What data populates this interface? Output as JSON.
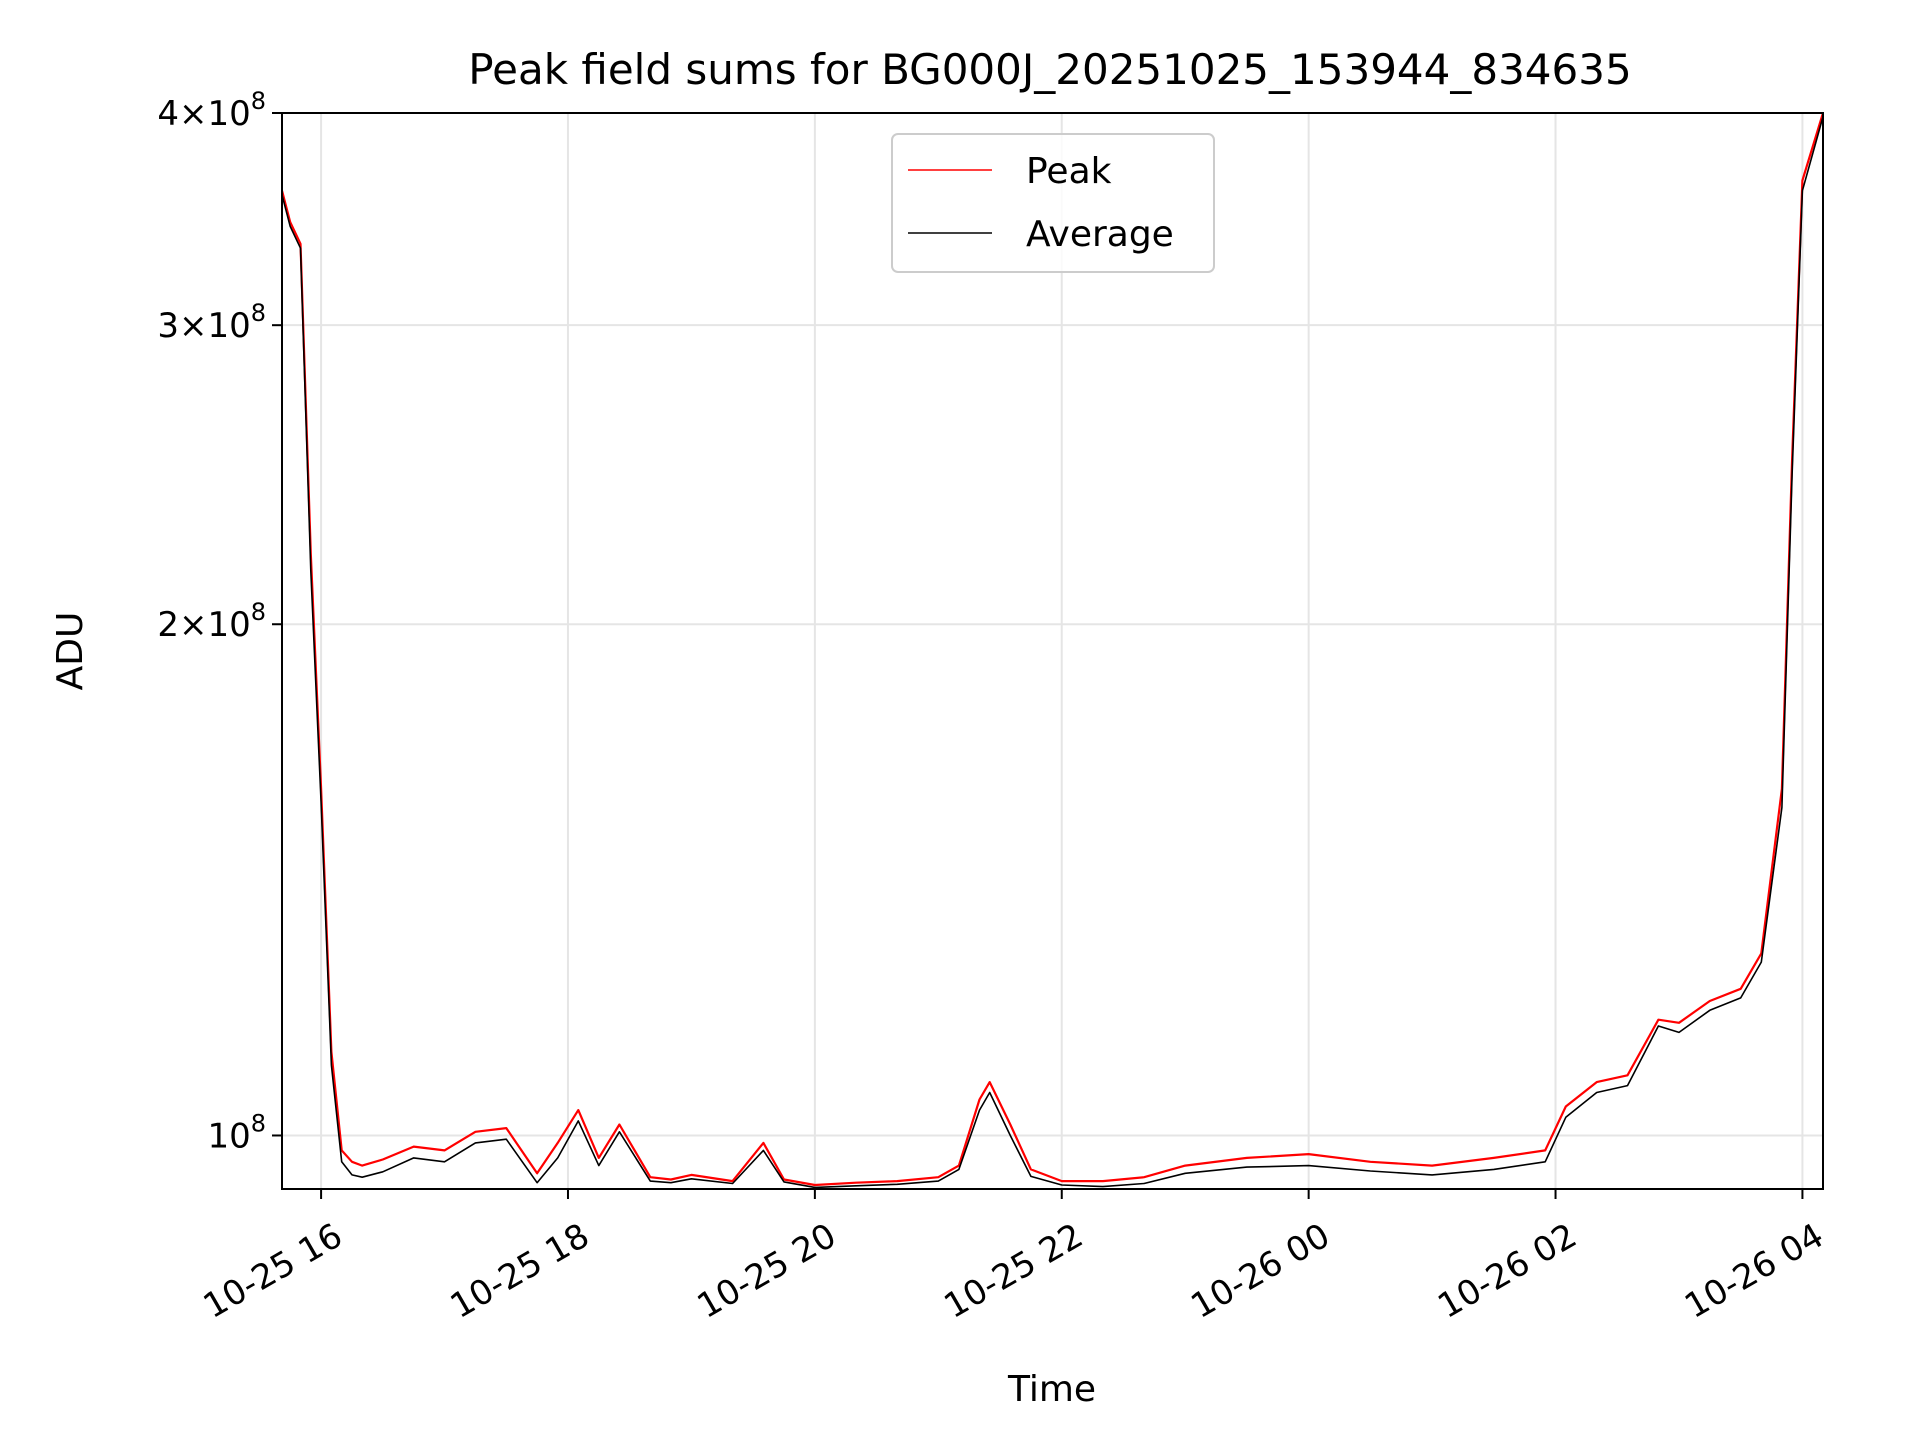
{
  "chart_data": {
    "type": "line",
    "title": "Peak field sums for BG000J_20251025_153944_834635",
    "xlabel": "Time",
    "ylabel": "ADU",
    "y_scale": "log",
    "grid": true,
    "legend_position": "upper center",
    "xlim": [
      "2025-10-25 15:41",
      "2025-10-26 04:10"
    ],
    "ylim": [
      93000000.0,
      400000000.0
    ],
    "x_ticks": [
      {
        "value": "2025-10-25 16:00",
        "label": "10-25 16"
      },
      {
        "value": "2025-10-25 18:00",
        "label": "10-25 18"
      },
      {
        "value": "2025-10-25 20:00",
        "label": "10-25 20"
      },
      {
        "value": "2025-10-25 22:00",
        "label": "10-25 22"
      },
      {
        "value": "2025-10-26 00:00",
        "label": "10-26 00"
      },
      {
        "value": "2025-10-26 02:00",
        "label": "10-26 02"
      },
      {
        "value": "2025-10-26 04:00",
        "label": "10-26 04"
      }
    ],
    "y_ticks": [
      {
        "value": 100000000,
        "base": "10",
        "exp": "8",
        "mantissa": ""
      },
      {
        "value": 200000000,
        "base": "10",
        "exp": "8",
        "mantissa": "2×"
      },
      {
        "value": 300000000,
        "base": "10",
        "exp": "8",
        "mantissa": "3×"
      },
      {
        "value": 400000000,
        "base": "10",
        "exp": "8",
        "mantissa": "4×"
      }
    ],
    "series": [
      {
        "name": "Peak",
        "color": "#ff0000",
        "x": [
          "2025-10-25 15:41",
          "2025-10-25 15:45",
          "2025-10-25 15:50",
          "2025-10-25 15:55",
          "2025-10-25 16:00",
          "2025-10-25 16:05",
          "2025-10-25 16:10",
          "2025-10-25 16:15",
          "2025-10-25 16:20",
          "2025-10-25 16:30",
          "2025-10-25 16:45",
          "2025-10-25 17:00",
          "2025-10-25 17:15",
          "2025-10-25 17:30",
          "2025-10-25 17:45",
          "2025-10-25 17:55",
          "2025-10-25 18:05",
          "2025-10-25 18:15",
          "2025-10-25 18:25",
          "2025-10-25 18:40",
          "2025-10-25 18:50",
          "2025-10-25 19:00",
          "2025-10-25 19:20",
          "2025-10-25 19:35",
          "2025-10-25 19:45",
          "2025-10-25 20:00",
          "2025-10-25 20:20",
          "2025-10-25 20:40",
          "2025-10-25 21:00",
          "2025-10-25 21:10",
          "2025-10-25 21:20",
          "2025-10-25 21:25",
          "2025-10-25 21:35",
          "2025-10-25 21:45",
          "2025-10-25 22:00",
          "2025-10-25 22:20",
          "2025-10-25 22:40",
          "2025-10-25 23:00",
          "2025-10-25 23:30",
          "2025-10-26 00:00",
          "2025-10-26 00:30",
          "2025-10-26 01:00",
          "2025-10-26 01:30",
          "2025-10-26 01:55",
          "2025-10-26 02:05",
          "2025-10-26 02:20",
          "2025-10-26 02:35",
          "2025-10-26 02:50",
          "2025-10-26 03:00",
          "2025-10-26 03:15",
          "2025-10-26 03:30",
          "2025-10-26 03:40",
          "2025-10-26 03:50",
          "2025-10-26 03:55",
          "2025-10-26 04:00",
          "2025-10-26 04:10"
        ],
        "values": [
          360000000,
          345000000,
          335000000,
          220000000,
          160000000,
          112000000,
          98000000,
          96500000,
          96000000,
          96800000,
          98500000,
          98000000,
          100500000,
          101000000,
          95000000,
          99000000,
          103500000,
          97000000,
          101500000,
          94500000,
          94200000,
          94800000,
          94000000,
          99000000,
          94200000,
          93500000,
          93800000,
          94000000,
          94500000,
          96000000,
          105000000,
          107500000,
          101500000,
          95500000,
          94000000,
          94000000,
          94500000,
          96000000,
          97000000,
          97500000,
          96500000,
          96000000,
          97000000,
          98000000,
          104000000,
          107500000,
          108500000,
          117000000,
          116500000,
          120000000,
          122000000,
          128000000,
          160000000,
          250000000,
          365000000,
          400000000
        ]
      },
      {
        "name": "Average",
        "color": "#000000",
        "x": [
          "2025-10-25 15:41",
          "2025-10-25 15:45",
          "2025-10-25 15:50",
          "2025-10-25 15:55",
          "2025-10-25 16:00",
          "2025-10-25 16:05",
          "2025-10-25 16:10",
          "2025-10-25 16:15",
          "2025-10-25 16:20",
          "2025-10-25 16:30",
          "2025-10-25 16:45",
          "2025-10-25 17:00",
          "2025-10-25 17:15",
          "2025-10-25 17:30",
          "2025-10-25 17:45",
          "2025-10-25 17:55",
          "2025-10-25 18:05",
          "2025-10-25 18:15",
          "2025-10-25 18:25",
          "2025-10-25 18:40",
          "2025-10-25 18:50",
          "2025-10-25 19:00",
          "2025-10-25 19:20",
          "2025-10-25 19:35",
          "2025-10-25 19:45",
          "2025-10-25 20:00",
          "2025-10-25 20:20",
          "2025-10-25 20:40",
          "2025-10-25 21:00",
          "2025-10-25 21:10",
          "2025-10-25 21:20",
          "2025-10-25 21:25",
          "2025-10-25 21:35",
          "2025-10-25 21:45",
          "2025-10-25 22:00",
          "2025-10-25 22:20",
          "2025-10-25 22:40",
          "2025-10-25 23:00",
          "2025-10-25 23:30",
          "2025-10-26 00:00",
          "2025-10-26 00:30",
          "2025-10-26 01:00",
          "2025-10-26 01:30",
          "2025-10-26 01:55",
          "2025-10-26 02:05",
          "2025-10-26 02:20",
          "2025-10-26 02:35",
          "2025-10-26 02:50",
          "2025-10-26 03:00",
          "2025-10-26 03:15",
          "2025-10-26 03:30",
          "2025-10-26 03:40",
          "2025-10-26 03:50",
          "2025-10-26 03:55",
          "2025-10-26 04:00",
          "2025-10-26 04:10"
        ],
        "values": [
          358000000,
          343000000,
          333000000,
          215000000,
          157000000,
          110000000,
          96500000,
          94800000,
          94500000,
          95200000,
          97000000,
          96500000,
          99000000,
          99500000,
          93800000,
          97000000,
          102000000,
          96000000,
          100500000,
          94000000,
          93800000,
          94300000,
          93700000,
          98000000,
          93900000,
          93200000,
          93400000,
          93600000,
          94000000,
          95500000,
          103500000,
          106000000,
          100000000,
          94600000,
          93500000,
          93300000,
          93700000,
          95000000,
          95800000,
          96000000,
          95300000,
          94800000,
          95500000,
          96500000,
          102500000,
          106000000,
          107000000,
          116000000,
          115000000,
          118500000,
          120500000,
          126500000,
          156000000,
          245000000,
          360000000,
          398000000
        ]
      }
    ]
  }
}
